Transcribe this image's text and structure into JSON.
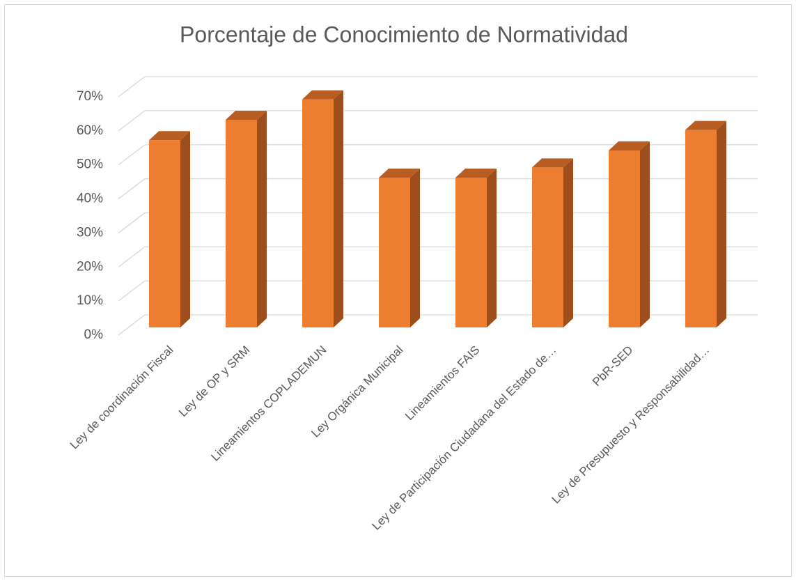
{
  "chart_data": {
    "type": "bar",
    "title": "Porcentaje de Conocimiento de Normatividad",
    "categories": [
      "Ley de coordinación Fiscal",
      "Ley de OP y SRM",
      "Lineamientos COPLADEMUN",
      "Ley Orgánica Municipal",
      "Lineamientos FAIS",
      "Ley de Participación Ciudadana del Estado de…",
      "PbR-SED",
      "Ley de Presupuesto y Responsabilidad…"
    ],
    "values": [
      55,
      61,
      67,
      44,
      44,
      47,
      52,
      58
    ],
    "color": "#ED7D31",
    "ylim": [
      0,
      70
    ],
    "yticks": [
      {
        "value": 0,
        "label": "0%"
      },
      {
        "value": 10,
        "label": "10%"
      },
      {
        "value": 20,
        "label": "20%"
      },
      {
        "value": 30,
        "label": "30%"
      },
      {
        "value": 40,
        "label": "40%"
      },
      {
        "value": 50,
        "label": "50%"
      },
      {
        "value": 60,
        "label": "60%"
      },
      {
        "value": 70,
        "label": "70%"
      }
    ],
    "grid": true
  }
}
